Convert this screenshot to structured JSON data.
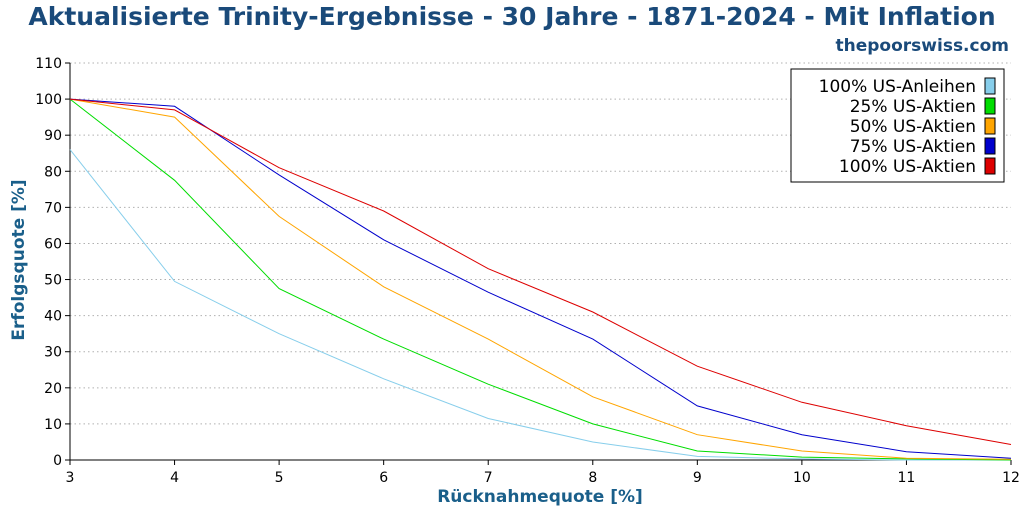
{
  "header": {
    "title": "Aktualisierte Trinity-Ergebnisse - 30 Jahre - 1871-2024 - Mit Inflation",
    "site": "thepoorswiss.com"
  },
  "chart_data": {
    "type": "line",
    "title": "Aktualisierte Trinity-Ergebnisse - 30 Jahre - 1871-2024 - Mit Inflation",
    "xlabel": "Rücknahmequote [%]",
    "ylabel": "Erfolgsquote [%]",
    "x": [
      3,
      4,
      5,
      6,
      7,
      8,
      9,
      10,
      11,
      12
    ],
    "xlim": [
      3,
      12
    ],
    "ylim": [
      0,
      110
    ],
    "xticks": [
      "3",
      "4",
      "5",
      "6",
      "7",
      "8",
      "9",
      "10",
      "11",
      "12"
    ],
    "yticks": [
      "0",
      "10",
      "20",
      "30",
      "40",
      "50",
      "60",
      "70",
      "80",
      "90",
      "100",
      "110"
    ],
    "grid": "horizontal dotted",
    "legend_position": "top-right",
    "series": [
      {
        "name": "100% US-Anleihen",
        "color": "#87ceeb",
        "values": [
          86,
          49.5,
          35,
          22.5,
          11.5,
          5,
          1,
          0.3,
          0,
          0
        ]
      },
      {
        "name": "25% US-Aktien",
        "color": "#00dd00",
        "values": [
          100,
          77.5,
          47.5,
          33.5,
          21,
          10,
          2.5,
          0.8,
          0.3,
          0
        ]
      },
      {
        "name": "50% US-Aktien",
        "color": "#ffa500",
        "values": [
          100,
          95,
          67.5,
          48,
          33.5,
          17.5,
          7,
          2.5,
          0.5,
          0.2
        ]
      },
      {
        "name": "75% US-Aktien",
        "color": "#0000cc",
        "values": [
          100,
          98,
          79,
          61,
          46.5,
          33.5,
          15,
          7,
          2.3,
          0.5
        ]
      },
      {
        "name": "100% US-Aktien",
        "color": "#dd0000",
        "values": [
          100,
          97,
          81,
          69,
          53,
          41,
          26,
          16,
          9.5,
          4.3
        ]
      }
    ]
  }
}
